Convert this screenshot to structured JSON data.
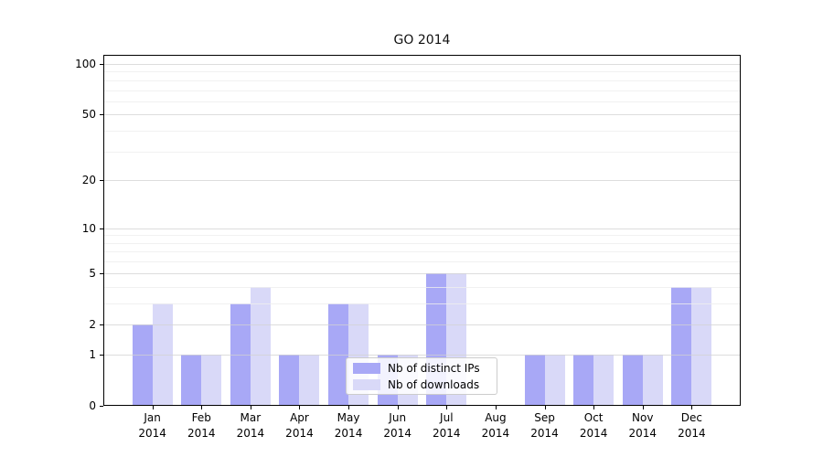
{
  "chart_data": {
    "type": "bar",
    "title": "GO 2014",
    "categories": [
      "Jan",
      "Feb",
      "Mar",
      "Apr",
      "May",
      "Jun",
      "Jul",
      "Aug",
      "Sep",
      "Oct",
      "Nov",
      "Dec"
    ],
    "year_label": "2014",
    "series": [
      {
        "name": "Nb of distinct IPs",
        "color": "#a8a8f6",
        "values": [
          2,
          1,
          3,
          1,
          3,
          1,
          5,
          0,
          1,
          1,
          1,
          4
        ]
      },
      {
        "name": "Nb of downloads",
        "color": "#d9d9f8",
        "values": [
          3,
          1,
          4,
          1,
          3,
          1,
          5,
          0,
          1,
          1,
          1,
          4
        ]
      }
    ],
    "yscale": "log1p",
    "ylim": [
      0,
      113
    ],
    "yticks": [
      0,
      1,
      2,
      5,
      10,
      20,
      50,
      100
    ],
    "minor_yticks": [
      3,
      4,
      6,
      7,
      8,
      9,
      30,
      40,
      60,
      70,
      80,
      90
    ],
    "grid": true,
    "legend_position": "lower center",
    "colors": {
      "grid_major": "#d2d2d2",
      "grid_minor": "#ededed",
      "axis": "#000000",
      "text": "#000000",
      "legend_border": "#cccccc"
    }
  }
}
